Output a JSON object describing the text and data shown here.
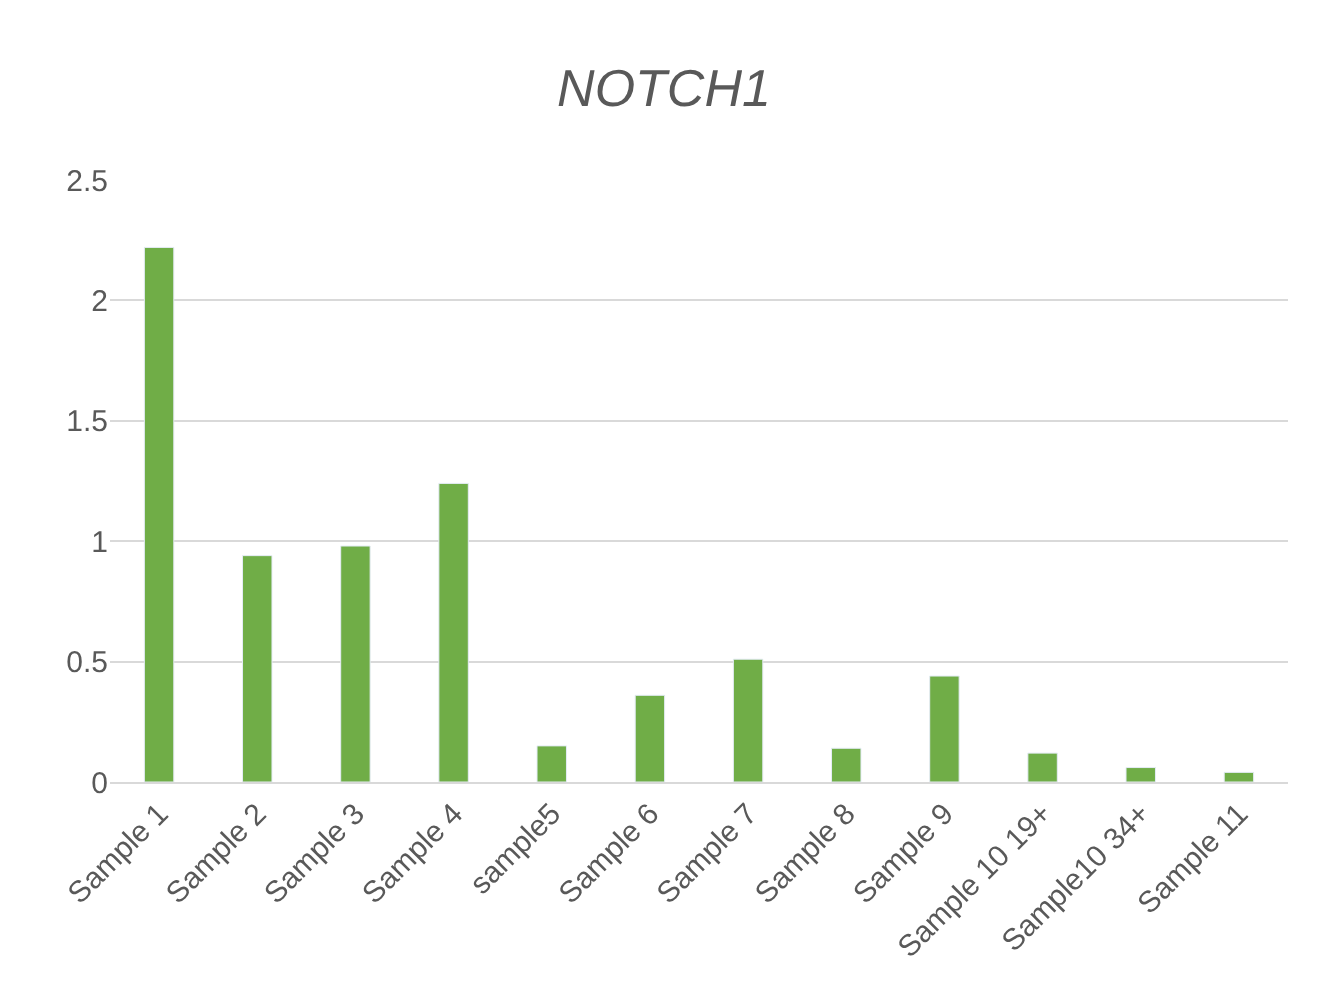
{
  "chart_data": {
    "type": "bar",
    "title": "NOTCH1",
    "categories": [
      "Sample 1",
      "Sample 2",
      "Sample 3",
      "Sample 4",
      "sample5",
      "Sample 6",
      "Sample 7",
      "Sample 8",
      "Sample 9",
      "Sample 10 19+",
      "Sample10 34+",
      "Sample 11"
    ],
    "values": [
      2.22,
      0.94,
      0.98,
      1.24,
      0.15,
      0.36,
      0.51,
      0.14,
      0.44,
      0.12,
      0.06,
      0.04
    ],
    "color": "#70ad47",
    "ylim": [
      0,
      2.5
    ],
    "yticks": [
      0,
      0.5,
      1,
      1.5,
      2,
      2.5
    ],
    "grid": "y",
    "legend": false
  }
}
